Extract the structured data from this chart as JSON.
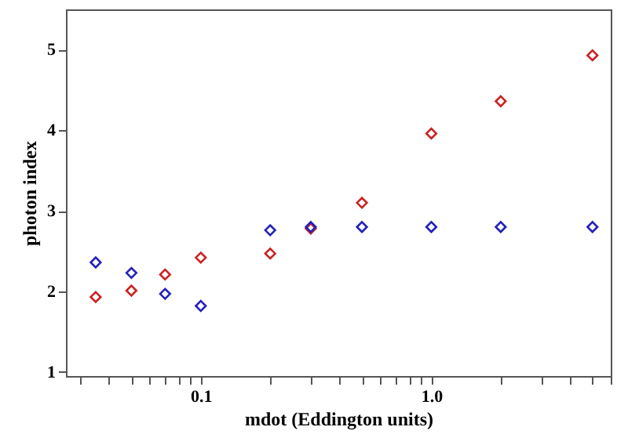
{
  "chart_data": {
    "type": "scatter",
    "xlabel": "mdot (Eddington units)",
    "ylabel": "photon index",
    "log": "x",
    "marker": "diamond",
    "grid": false,
    "x": [
      0.035,
      0.05,
      0.07,
      0.1,
      0.2,
      0.3,
      0.5,
      1,
      2,
      5
    ],
    "xlim": [
      0.026,
      6
    ],
    "ylim": [
      0.95,
      5.5
    ],
    "xticks": [
      {
        "value": 0.03,
        "label": null
      },
      {
        "value": 0.04,
        "label": null
      },
      {
        "value": 0.05,
        "label": null
      },
      {
        "value": 0.06,
        "label": null
      },
      {
        "value": 0.07,
        "label": null
      },
      {
        "value": 0.08,
        "label": null
      },
      {
        "value": 0.09,
        "label": null
      },
      0.1,
      {
        "value": 0.2,
        "label": null
      },
      {
        "value": 0.3,
        "label": null
      },
      {
        "value": 0.4,
        "label": null
      },
      {
        "value": 0.5,
        "label": null
      },
      {
        "value": 0.6,
        "label": null
      },
      {
        "value": 0.7,
        "label": null
      },
      {
        "value": 0.8,
        "label": null
      },
      {
        "value": 0.9,
        "label": null
      },
      {
        "value": 1,
        "label": "1.0"
      },
      {
        "value": 2,
        "label": null
      },
      {
        "value": 3,
        "label": null
      },
      {
        "value": 4,
        "label": null
      },
      {
        "value": 5,
        "label": null
      },
      {
        "value": 6,
        "label": null
      }
    ],
    "yticks": [
      1,
      2,
      3,
      4,
      5
    ],
    "series": [
      {
        "color": "#cc2222",
        "values": [
          1.93,
          2.01,
          2.21,
          2.42,
          2.47,
          2.78,
          3.1,
          3.96,
          4.36,
          4.93
        ]
      },
      {
        "color": "#2222bb",
        "values": [
          2.36,
          2.23,
          1.97,
          1.82,
          2.76,
          2.8,
          2.8,
          2.8,
          2.8,
          2.8
        ]
      }
    ]
  }
}
